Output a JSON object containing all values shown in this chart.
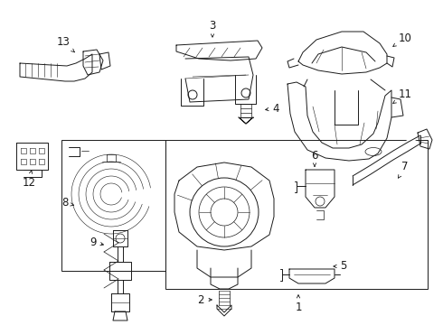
{
  "bg_color": "#ffffff",
  "lc": "#1a1a1a",
  "lw": 0.7,
  "fig_w": 4.9,
  "fig_h": 3.6,
  "dpi": 100
}
